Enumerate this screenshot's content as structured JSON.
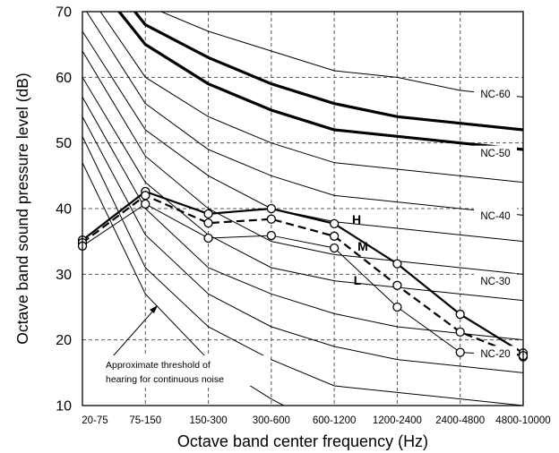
{
  "chart_data": {
    "type": "line",
    "title": "",
    "xlabel": "Octave band center frequency (Hz)",
    "ylabel": "Octave band  sound pressure level (dB)",
    "ylim": [
      10,
      70
    ],
    "y_ticks": [
      10,
      20,
      30,
      40,
      50,
      60,
      70
    ],
    "categories": [
      "20-75",
      "75-150",
      "150-300",
      "300-600",
      "600-1200",
      "1200-2400",
      "2400-4800",
      "4800-10000"
    ],
    "grid": true,
    "nc_curves": [
      {
        "name": "NC-15",
        "values": [
          47,
          27,
          17,
          11,
          6,
          3,
          1,
          0
        ]
      },
      {
        "name": "NC-20",
        "values": [
          51,
          31,
          22,
          17,
          13,
          12,
          11,
          10
        ]
      },
      {
        "name": "NC-25",
        "values": [
          54,
          36,
          27,
          22,
          19,
          17,
          16,
          15
        ]
      },
      {
        "name": "NC-30",
        "values": [
          57,
          40,
          31,
          27,
          24,
          22,
          21,
          20
        ]
      },
      {
        "name": "NC-35",
        "values": [
          60,
          44,
          36,
          31,
          29,
          28,
          27,
          26
        ]
      },
      {
        "name": "NC-40",
        "values": [
          64,
          48,
          40,
          35,
          33,
          32,
          31,
          30
        ]
      },
      {
        "name": "NC-45",
        "values": [
          67,
          52,
          45,
          40,
          38,
          37,
          36,
          35
        ]
      },
      {
        "name": "NC-50",
        "values": [
          71,
          56,
          49,
          45,
          42,
          41,
          40,
          39
        ]
      },
      {
        "name": "NC-55",
        "values": [
          74,
          60,
          54,
          50,
          47,
          46,
          45,
          44
        ]
      },
      {
        "name": "NC-60",
        "values": [
          77,
          65,
          59,
          55,
          52,
          51,
          50,
          49
        ]
      },
      {
        "name": "NC-65",
        "values": [
          80,
          68,
          63,
          59,
          56,
          54,
          53,
          52
        ]
      },
      {
        "name": "NC-70",
        "values": [
          83,
          71,
          67,
          64,
          61,
          60,
          58,
          57
        ]
      }
    ],
    "nc_labels": [
      {
        "text": "NC-60",
        "y": 57.5
      },
      {
        "text": "NC-50",
        "y": 48.5
      },
      {
        "text": "NC-40",
        "y": 39
      },
      {
        "text": "NC-30",
        "y": 29
      },
      {
        "text": "NC-20",
        "y": 18
      }
    ],
    "series": [
      {
        "name": "H",
        "style": "solid-thick",
        "values": [
          35.2,
          42.6,
          39.2,
          40.0,
          37.7,
          31.6,
          23.9,
          18.0
        ]
      },
      {
        "name": "M",
        "style": "dashed",
        "values": [
          34.8,
          42.0,
          37.8,
          38.4,
          35.8,
          28.3,
          21.2,
          17.4
        ]
      },
      {
        "name": "L",
        "style": "solid-thin",
        "values": [
          34.3,
          40.7,
          35.5,
          35.9,
          34.0,
          25.0,
          18.1,
          17.6
        ]
      }
    ],
    "annotation": {
      "line1": "Approximate threshold of",
      "line2": "hearing for continuous noise"
    }
  }
}
